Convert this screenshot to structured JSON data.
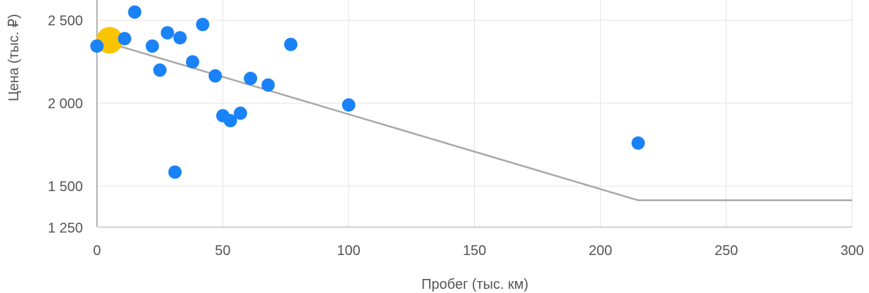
{
  "chart_data": {
    "type": "scatter",
    "xlabel": "Пробег (тыс. км)",
    "ylabel": "Цена (тыс. ₽)",
    "xlim": [
      0,
      300
    ],
    "ylim": [
      1250,
      2600
    ],
    "x_ticks": [
      {
        "value": 0,
        "label": "0"
      },
      {
        "value": 50,
        "label": "50"
      },
      {
        "value": 100,
        "label": "100"
      },
      {
        "value": 150,
        "label": "150"
      },
      {
        "value": 200,
        "label": "200"
      },
      {
        "value": 250,
        "label": "250"
      },
      {
        "value": 300,
        "label": "300"
      }
    ],
    "y_ticks": [
      {
        "value": 1250,
        "label": "1 250"
      },
      {
        "value": 1500,
        "label": "1 500"
      },
      {
        "value": 2000,
        "label": "2 000"
      },
      {
        "value": 2500,
        "label": "2 500"
      }
    ],
    "grid": true,
    "point_color": "#1a82f7",
    "highlight_color": "#f9c400",
    "trend_color": "#a8a8a8",
    "points": [
      {
        "x": 0,
        "y": 2345
      },
      {
        "x": 11,
        "y": 2390
      },
      {
        "x": 15,
        "y": 2550
      },
      {
        "x": 22,
        "y": 2345
      },
      {
        "x": 25,
        "y": 2200
      },
      {
        "x": 28,
        "y": 2425
      },
      {
        "x": 31,
        "y": 1585
      },
      {
        "x": 33,
        "y": 2395
      },
      {
        "x": 38,
        "y": 2250
      },
      {
        "x": 42,
        "y": 2475
      },
      {
        "x": 47,
        "y": 2165
      },
      {
        "x": 50,
        "y": 1925
      },
      {
        "x": 53,
        "y": 1895
      },
      {
        "x": 57,
        "y": 1940
      },
      {
        "x": 61,
        "y": 2150
      },
      {
        "x": 68,
        "y": 2110
      },
      {
        "x": 77,
        "y": 2355
      },
      {
        "x": 100,
        "y": 1990
      },
      {
        "x": 215,
        "y": 1760
      }
    ],
    "highlight_point": {
      "x": 5,
      "y": 2380
    },
    "trend_line": [
      {
        "x": 0,
        "y": 2385
      },
      {
        "x": 215,
        "y": 1415
      },
      {
        "x": 300,
        "y": 1415
      }
    ]
  }
}
